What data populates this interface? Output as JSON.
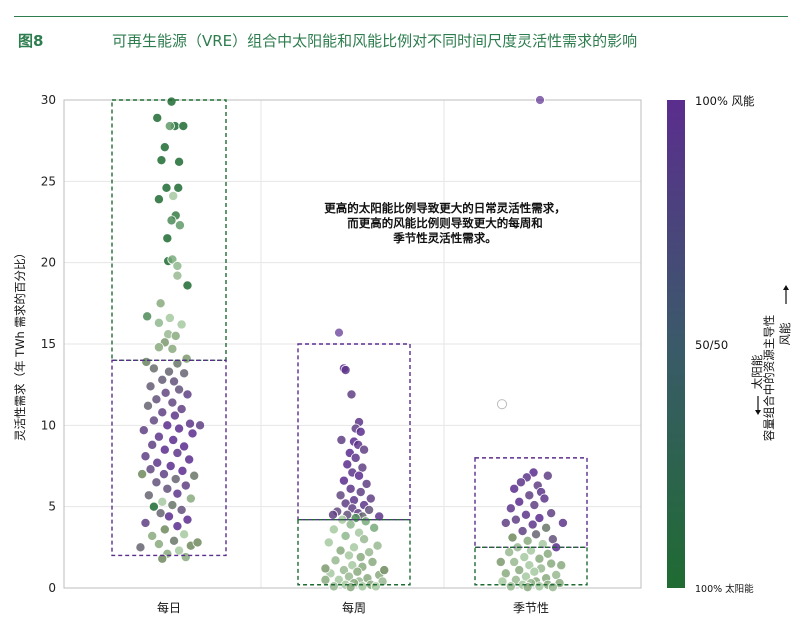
{
  "figure": {
    "label": "图8",
    "title": "可再生能源（VRE）组合中太阳能和风能比例对不同时间尺度灵活性需求的影响"
  },
  "colors": {
    "title": "#2e7d4f",
    "solid": "#ffffff",
    "wind_end": "#5b2d8e",
    "mid": "#3a5a6a",
    "solar_end": "#1f6b32",
    "box_purple": "#5b2d8e",
    "box_green": "#1f6b32"
  },
  "chart_data": {
    "type": "scatter",
    "subtype": "strip-plot",
    "categories": [
      "每日",
      "每周",
      "季节性"
    ],
    "ylabel": "灵活性需求（年 TWh 需求的百分比）",
    "xlabel": "",
    "ylim": [
      0,
      30
    ],
    "yticks": [
      0,
      5,
      10,
      15,
      20,
      25,
      30
    ],
    "grid": true,
    "annotation": [
      "更高的太阳能比例导致更大的日常灵活性需求，",
      "而更高的风能比例则导致更大的每周和",
      "季节性灵活性需求。"
    ],
    "colorbar": {
      "top_label": "100% 风能",
      "mid_label": "50/50",
      "bottom_label": "100% 太阳能",
      "title": "容量组合中的资源主导性",
      "arrow_up": "风能",
      "arrow_down": "太阳能"
    },
    "boxes": [
      {
        "category": "每日",
        "group": "solar-dominant",
        "y0": 14,
        "y1": 30
      },
      {
        "category": "每日",
        "group": "wind-dominant",
        "y0": 2,
        "y1": 14
      },
      {
        "category": "每周",
        "group": "wind-dominant",
        "y0": 4.2,
        "y1": 15
      },
      {
        "category": "每周",
        "group": "solar-dominant",
        "y0": 0.2,
        "y1": 4.2
      },
      {
        "category": "季节性",
        "group": "wind-dominant",
        "y0": 2.5,
        "y1": 8
      },
      {
        "category": "季节性",
        "group": "solar-dominant",
        "y0": 0.2,
        "y1": 2.5
      }
    ],
    "outliers": [
      {
        "category": "每周",
        "y": 15.7,
        "solar_share": 0.0
      },
      {
        "category": "季节性",
        "y": 30.0,
        "solar_share": 0.0
      },
      {
        "category": "季节性",
        "y": 11.3,
        "solar_share": null
      }
    ],
    "series": [
      {
        "name": "每日",
        "note": "solar_share 1=100% 太阳能, 0=100% 风能",
        "points": [
          [
            0.03,
            29.9,
            1
          ],
          [
            -0.14,
            28.9,
            1
          ],
          [
            0.07,
            28.4,
            1
          ],
          [
            0.01,
            28.4,
            0.85
          ],
          [
            0.17,
            28.4,
            1
          ],
          [
            -0.05,
            27.1,
            1
          ],
          [
            -0.09,
            26.3,
            1
          ],
          [
            0.12,
            26.2,
            1
          ],
          [
            -0.03,
            24.6,
            1
          ],
          [
            0.11,
            24.6,
            1
          ],
          [
            -0.12,
            23.9,
            1
          ],
          [
            0.05,
            24.1,
            0.7
          ],
          [
            0.08,
            22.9,
            0.95
          ],
          [
            0.03,
            22.6,
            0.9
          ],
          [
            0.13,
            22.3,
            0.85
          ],
          [
            -0.02,
            21.5,
            1
          ],
          [
            -0.01,
            20.1,
            1
          ],
          [
            0.04,
            20.2,
            0.8
          ],
          [
            0.1,
            19.8,
            0.75
          ],
          [
            0.1,
            19.2,
            0.65
          ],
          [
            0.22,
            18.6,
            1
          ],
          [
            -0.1,
            17.5,
            0.6
          ],
          [
            -0.26,
            16.7,
            0.9
          ],
          [
            0.01,
            16.6,
            0.7
          ],
          [
            -0.12,
            16.3,
            0.75
          ],
          [
            0.15,
            16.2,
            0.7
          ],
          [
            -0.01,
            15.6,
            0.65
          ],
          [
            0.08,
            15.5,
            0.6
          ],
          [
            -0.05,
            15.1,
            0.55
          ],
          [
            -0.12,
            14.8,
            0.6
          ],
          [
            0.04,
            14.7,
            0.6
          ],
          [
            0.21,
            14.1,
            0.55
          ],
          [
            -0.27,
            13.9,
            0.45
          ],
          [
            0.1,
            13.8,
            0.4
          ],
          [
            -0.18,
            13.5,
            0.35
          ],
          [
            0.0,
            13.3,
            0.3
          ],
          [
            0.18,
            13.2,
            0.3
          ],
          [
            -0.08,
            12.8,
            0.25
          ],
          [
            0.06,
            12.7,
            0.2
          ],
          [
            -0.22,
            12.4,
            0.25
          ],
          [
            0.12,
            12.2,
            0.2
          ],
          [
            -0.04,
            12.0,
            0.15
          ],
          [
            0.22,
            11.9,
            0.1
          ],
          [
            -0.15,
            11.6,
            0.2
          ],
          [
            0.04,
            11.4,
            0.15
          ],
          [
            -0.25,
            11.2,
            0.3
          ],
          [
            0.15,
            11.0,
            0.1
          ],
          [
            -0.08,
            10.8,
            0.1
          ],
          [
            0.07,
            10.6,
            0.05
          ],
          [
            -0.18,
            10.3,
            0.15
          ],
          [
            0.25,
            10.1,
            0.05
          ],
          [
            -0.02,
            10.0,
            0.0
          ],
          [
            0.12,
            9.8,
            0.0
          ],
          [
            -0.3,
            9.7,
            0.1
          ],
          [
            0.28,
            9.5,
            0.0
          ],
          [
            -0.12,
            9.3,
            0.05
          ],
          [
            0.05,
            9.1,
            0.0
          ],
          [
            -0.2,
            8.8,
            0.1
          ],
          [
            0.18,
            8.7,
            0.0
          ],
          [
            -0.05,
            8.5,
            0.0
          ],
          [
            0.1,
            8.3,
            0.05
          ],
          [
            -0.28,
            8.1,
            0.1
          ],
          [
            0.24,
            7.9,
            0.0
          ],
          [
            -0.14,
            7.7,
            0.05
          ],
          [
            0.02,
            7.5,
            0.0
          ],
          [
            -0.22,
            7.3,
            0.15
          ],
          [
            0.16,
            7.2,
            0.0
          ],
          [
            -0.06,
            7.0,
            0.1
          ],
          [
            0.3,
            6.9,
            0.4
          ],
          [
            -0.32,
            7.0,
            0.5
          ],
          [
            0.08,
            6.7,
            0.3
          ],
          [
            -0.15,
            6.5,
            0.2
          ],
          [
            0.2,
            6.3,
            0.1
          ],
          [
            -0.02,
            6.1,
            0.2
          ],
          [
            0.1,
            5.8,
            0.05
          ],
          [
            -0.24,
            5.7,
            0.3
          ],
          [
            0.26,
            5.5,
            0.6
          ],
          [
            -0.08,
            5.3,
            0.7
          ],
          [
            0.04,
            5.1,
            0.4
          ],
          [
            -0.18,
            5.0,
            1
          ],
          [
            0.15,
            4.8,
            0.2
          ],
          [
            -0.1,
            4.6,
            0.3
          ],
          [
            0.0,
            4.4,
            0.0
          ],
          [
            0.22,
            4.2,
            0.0
          ],
          [
            -0.28,
            4.0,
            0.1
          ],
          [
            0.1,
            3.8,
            0.0
          ],
          [
            -0.05,
            3.6,
            0.5
          ],
          [
            0.18,
            3.3,
            0.7
          ],
          [
            -0.2,
            3.2,
            0.6
          ],
          [
            0.06,
            2.9,
            0.4
          ],
          [
            -0.12,
            2.7,
            0.6
          ],
          [
            0.26,
            2.6,
            0.5
          ],
          [
            -0.34,
            2.5,
            0.3
          ],
          [
            0.12,
            2.3,
            0.7
          ],
          [
            -0.02,
            2.1,
            0.6
          ],
          [
            -0.08,
            1.8,
            0.5
          ],
          [
            0.2,
            1.9,
            0.6
          ],
          [
            0.34,
            2.8,
            0.5
          ],
          [
            0.37,
            10.0,
            0.1
          ]
        ]
      },
      {
        "name": "每周",
        "points": [
          [
            -0.12,
            13.5,
            0.0
          ],
          [
            -0.1,
            13.4,
            0.05
          ],
          [
            -0.03,
            11.9,
            0.1
          ],
          [
            0.06,
            10.2,
            0.05
          ],
          [
            0.02,
            9.8,
            0.1
          ],
          [
            0.08,
            9.6,
            0.0
          ],
          [
            -0.15,
            9.1,
            0.1
          ],
          [
            0.0,
            9.0,
            0.0
          ],
          [
            0.05,
            8.8,
            0.05
          ],
          [
            0.12,
            8.5,
            0.1
          ],
          [
            -0.05,
            8.3,
            0.0
          ],
          [
            0.02,
            8.0,
            0.05
          ],
          [
            -0.08,
            7.6,
            0.0
          ],
          [
            0.1,
            7.4,
            0.1
          ],
          [
            -0.02,
            7.1,
            0.05
          ],
          [
            0.06,
            6.9,
            0.0
          ],
          [
            -0.12,
            6.6,
            0.0
          ],
          [
            0.15,
            6.4,
            0.1
          ],
          [
            -0.04,
            6.1,
            0.05
          ],
          [
            0.08,
            5.9,
            0.1
          ],
          [
            -0.16,
            5.7,
            0.15
          ],
          [
            0.2,
            5.5,
            0.1
          ],
          [
            0.0,
            5.4,
            0.05
          ],
          [
            -0.1,
            5.2,
            0.1
          ],
          [
            0.12,
            5.1,
            0.05
          ],
          [
            -0.02,
            4.9,
            0.1
          ],
          [
            0.18,
            4.8,
            0.2
          ],
          [
            -0.2,
            4.7,
            0.15
          ],
          [
            0.05,
            4.6,
            0.1
          ],
          [
            -0.08,
            4.5,
            0.2
          ],
          [
            0.1,
            4.4,
            0.3
          ],
          [
            -0.25,
            4.5,
            0.1
          ],
          [
            0.3,
            4.4,
            0.05
          ],
          [
            0.02,
            4.3,
            0.9
          ],
          [
            -0.14,
            4.2,
            0.7
          ],
          [
            0.14,
            4.1,
            0.8
          ],
          [
            -0.04,
            3.9,
            0.75
          ],
          [
            0.24,
            3.7,
            0.8
          ],
          [
            -0.24,
            3.6,
            0.7
          ],
          [
            0.06,
            3.4,
            0.7
          ],
          [
            -0.1,
            3.2,
            0.75
          ],
          [
            0.12,
            3.0,
            0.65
          ],
          [
            -0.3,
            2.8,
            0.7
          ],
          [
            0.28,
            2.6,
            0.65
          ],
          [
            0.0,
            2.5,
            0.7
          ],
          [
            -0.16,
            2.3,
            0.6
          ],
          [
            0.18,
            2.2,
            0.65
          ],
          [
            -0.06,
            2.0,
            0.7
          ],
          [
            0.08,
            1.9,
            0.6
          ],
          [
            -0.22,
            1.7,
            0.65
          ],
          [
            0.22,
            1.6,
            0.6
          ],
          [
            -0.02,
            1.4,
            0.7
          ],
          [
            0.1,
            1.3,
            0.6
          ],
          [
            -0.12,
            1.1,
            0.65
          ],
          [
            0.04,
            1.0,
            0.6
          ],
          [
            -0.28,
            0.9,
            0.7
          ],
          [
            0.3,
            0.8,
            0.6
          ],
          [
            -0.06,
            0.7,
            0.65
          ],
          [
            0.16,
            0.6,
            0.6
          ],
          [
            -0.18,
            0.5,
            0.7
          ],
          [
            0.06,
            0.4,
            0.65
          ],
          [
            -0.34,
            0.5,
            0.6
          ],
          [
            0.34,
            0.4,
            0.65
          ],
          [
            0.0,
            0.3,
            0.6
          ],
          [
            -0.1,
            0.2,
            0.7
          ],
          [
            0.2,
            0.2,
            0.6
          ],
          [
            -0.24,
            0.1,
            0.65
          ],
          [
            0.1,
            0.1,
            0.7
          ],
          [
            -0.04,
            0.05,
            0.6
          ],
          [
            0.26,
            0.1,
            0.7
          ],
          [
            -0.34,
            1.2,
            0.55
          ],
          [
            0.36,
            1.1,
            0.5
          ]
        ]
      },
      {
        "name": "季节性",
        "points": [
          [
            0.03,
            7.1,
            0.0
          ],
          [
            -0.05,
            6.8,
            0.05
          ],
          [
            0.2,
            6.9,
            0.1
          ],
          [
            -0.12,
            6.5,
            0.05
          ],
          [
            0.08,
            6.3,
            0.1
          ],
          [
            -0.2,
            6.1,
            0.0
          ],
          [
            0.12,
            5.9,
            0.05
          ],
          [
            -0.02,
            5.7,
            0.1
          ],
          [
            0.16,
            5.5,
            0.05
          ],
          [
            -0.14,
            5.3,
            0.0
          ],
          [
            0.04,
            5.1,
            0.1
          ],
          [
            -0.24,
            4.9,
            0.05
          ],
          [
            0.24,
            4.6,
            0.1
          ],
          [
            -0.06,
            4.5,
            0.05
          ],
          [
            0.1,
            4.3,
            0.0
          ],
          [
            -0.18,
            4.2,
            0.1
          ],
          [
            0.38,
            4.0,
            0.05
          ],
          [
            -0.3,
            4.0,
            0.1
          ],
          [
            0.02,
            3.9,
            0.05
          ],
          [
            0.18,
            3.7,
            0.4
          ],
          [
            -0.1,
            3.5,
            0.1
          ],
          [
            0.06,
            3.3,
            0.3
          ],
          [
            -0.22,
            3.1,
            0.5
          ],
          [
            0.26,
            3.0,
            0.2
          ],
          [
            -0.04,
            2.9,
            0.6
          ],
          [
            0.14,
            2.7,
            0.7
          ],
          [
            -0.16,
            2.5,
            0.65
          ],
          [
            0.3,
            2.5,
            0.0
          ],
          [
            0.0,
            2.3,
            0.7
          ],
          [
            -0.26,
            2.2,
            0.65
          ],
          [
            0.2,
            2.1,
            0.6
          ],
          [
            -0.08,
            1.9,
            0.7
          ],
          [
            0.1,
            1.8,
            0.6
          ],
          [
            -0.2,
            1.6,
            0.65
          ],
          [
            0.24,
            1.5,
            0.6
          ],
          [
            -0.02,
            1.4,
            0.7
          ],
          [
            0.12,
            1.2,
            0.65
          ],
          [
            -0.14,
            1.1,
            0.6
          ],
          [
            0.04,
            1.0,
            0.7
          ],
          [
            -0.3,
            0.9,
            0.6
          ],
          [
            0.3,
            0.8,
            0.65
          ],
          [
            -0.06,
            0.7,
            0.7
          ],
          [
            0.18,
            0.6,
            0.6
          ],
          [
            -0.18,
            0.5,
            0.65
          ],
          [
            0.06,
            0.4,
            0.6
          ],
          [
            -0.34,
            0.4,
            0.7
          ],
          [
            0.34,
            0.3,
            0.6
          ],
          [
            0.0,
            0.3,
            0.65
          ],
          [
            -0.1,
            0.2,
            0.7
          ],
          [
            0.2,
            0.2,
            0.6
          ],
          [
            -0.24,
            0.1,
            0.65
          ],
          [
            0.1,
            0.1,
            0.7
          ],
          [
            -0.04,
            0.05,
            0.6
          ],
          [
            0.26,
            0.05,
            0.65
          ],
          [
            -0.36,
            1.6,
            0.55
          ],
          [
            0.36,
            1.4,
            0.6
          ]
        ]
      }
    ]
  }
}
